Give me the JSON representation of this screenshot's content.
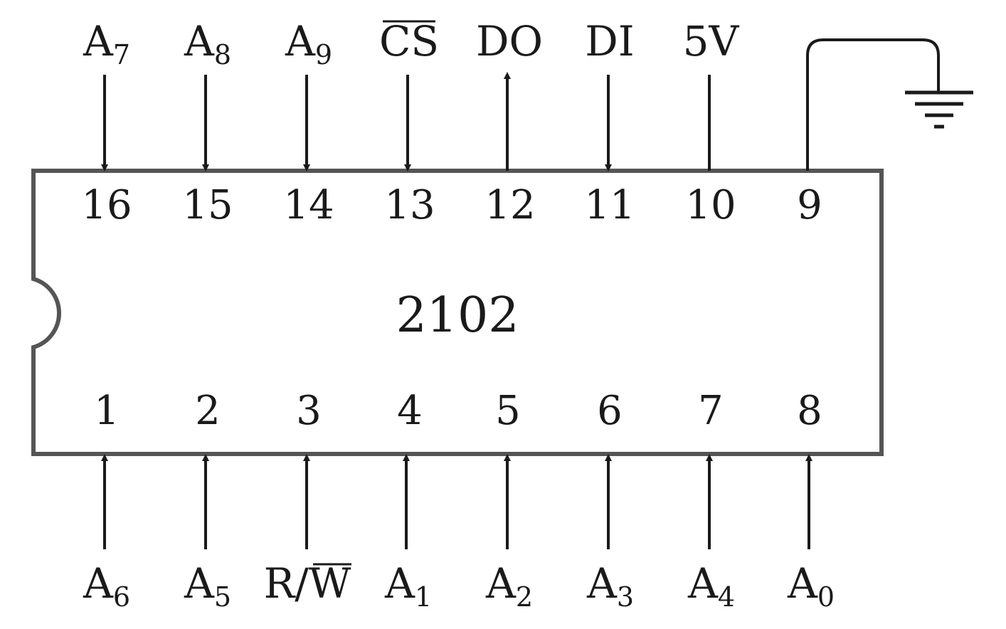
{
  "chip": {
    "label": "2102"
  },
  "top_pins": [
    {
      "number": "16",
      "signal": "A",
      "sub": "7",
      "overline": false,
      "direction": "in"
    },
    {
      "number": "15",
      "signal": "A",
      "sub": "8",
      "overline": false,
      "direction": "in"
    },
    {
      "number": "14",
      "signal": "A",
      "sub": "9",
      "overline": false,
      "direction": "in"
    },
    {
      "number": "13",
      "signal": "CS",
      "sub": "",
      "overline": true,
      "direction": "in"
    },
    {
      "number": "12",
      "signal": "DO",
      "sub": "",
      "overline": false,
      "direction": "out"
    },
    {
      "number": "11",
      "signal": "DI",
      "sub": "",
      "overline": false,
      "direction": "in"
    },
    {
      "number": "10",
      "signal": "5V",
      "sub": "",
      "overline": false,
      "direction": "none"
    },
    {
      "number": "9",
      "signal": "",
      "sub": "",
      "overline": false,
      "direction": "ground"
    }
  ],
  "bottom_pins": [
    {
      "number": "1",
      "signal": "A",
      "sub": "6",
      "direction": "in"
    },
    {
      "number": "2",
      "signal": "A",
      "sub": "5",
      "direction": "in"
    },
    {
      "number": "3",
      "signal": "R/W",
      "sub": "",
      "direction": "in"
    },
    {
      "number": "4",
      "signal": "A",
      "sub": "1",
      "direction": "in"
    },
    {
      "number": "5",
      "signal": "A",
      "sub": "2",
      "direction": "in"
    },
    {
      "number": "6",
      "signal": "A",
      "sub": "3",
      "direction": "in"
    },
    {
      "number": "7",
      "signal": "A",
      "sub": "4",
      "direction": "in"
    },
    {
      "number": "8",
      "signal": "A",
      "sub": "0",
      "direction": "in"
    }
  ],
  "colors": {
    "ink": "#1a1a1a",
    "chip_border": "#555555",
    "background": "#ffffff"
  }
}
